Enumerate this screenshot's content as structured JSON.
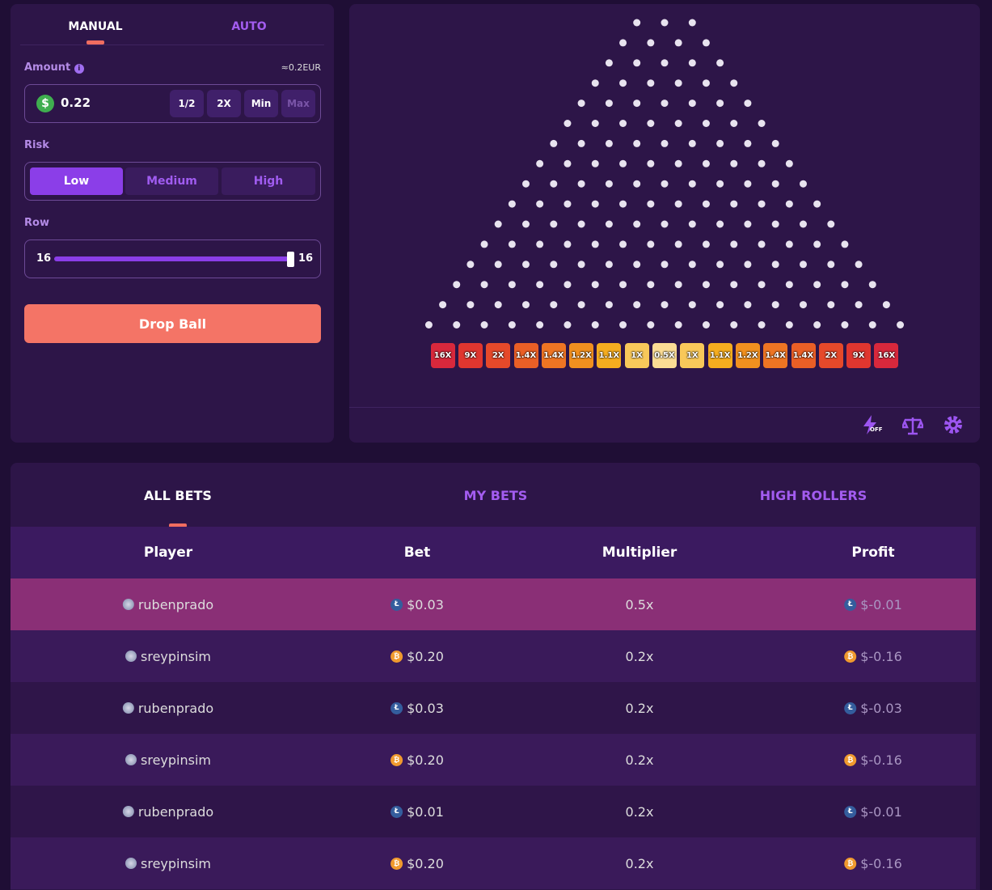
{
  "controls": {
    "tabs": [
      "MANUAL",
      "AUTO"
    ],
    "amount_label": "Amount",
    "info_icon": "i",
    "amount_conversion": "≈0.2EUR",
    "currency_symbol": "$",
    "amount_value": "0.22",
    "amount_buttons": [
      "1/2",
      "2X",
      "Min",
      "Max"
    ],
    "risk_label": "Risk",
    "risk_options": [
      "Low",
      "Medium",
      "High"
    ],
    "row_label": "Row",
    "row_min": "16",
    "row_value": "16",
    "drop_button": "Drop Ball"
  },
  "board": {
    "multipliers": [
      "16X",
      "9X",
      "2X",
      "1.4X",
      "1.4X",
      "1.2X",
      "1.1X",
      "1X",
      "0.5X",
      "1X",
      "1.1X",
      "1.2X",
      "1.4X",
      "1.4X",
      "2X",
      "9X",
      "16X"
    ],
    "turbo_badge": "OFF"
  },
  "bets": {
    "tabs": [
      "ALL BETS",
      "MY BETS",
      "HIGH ROLLERS"
    ],
    "columns": [
      "Player",
      "Bet",
      "Multiplier",
      "Profit"
    ],
    "rows": [
      {
        "player": "rubenprado",
        "coin": "Ł",
        "bet": "$0.03",
        "multiplier": "0.5x",
        "profit": "$-0.01"
      },
      {
        "player": "sreypinsim",
        "coin": "₿",
        "bet": "$0.20",
        "multiplier": "0.2x",
        "profit": "$-0.16"
      },
      {
        "player": "rubenprado",
        "coin": "Ł",
        "bet": "$0.03",
        "multiplier": "0.2x",
        "profit": "$-0.03"
      },
      {
        "player": "sreypinsim",
        "coin": "₿",
        "bet": "$0.20",
        "multiplier": "0.2x",
        "profit": "$-0.16"
      },
      {
        "player": "rubenprado",
        "coin": "Ł",
        "bet": "$0.01",
        "multiplier": "0.2x",
        "profit": "$-0.01"
      },
      {
        "player": "sreypinsim",
        "coin": "₿",
        "bet": "$0.20",
        "multiplier": "0.2x",
        "profit": "$-0.16"
      }
    ]
  }
}
